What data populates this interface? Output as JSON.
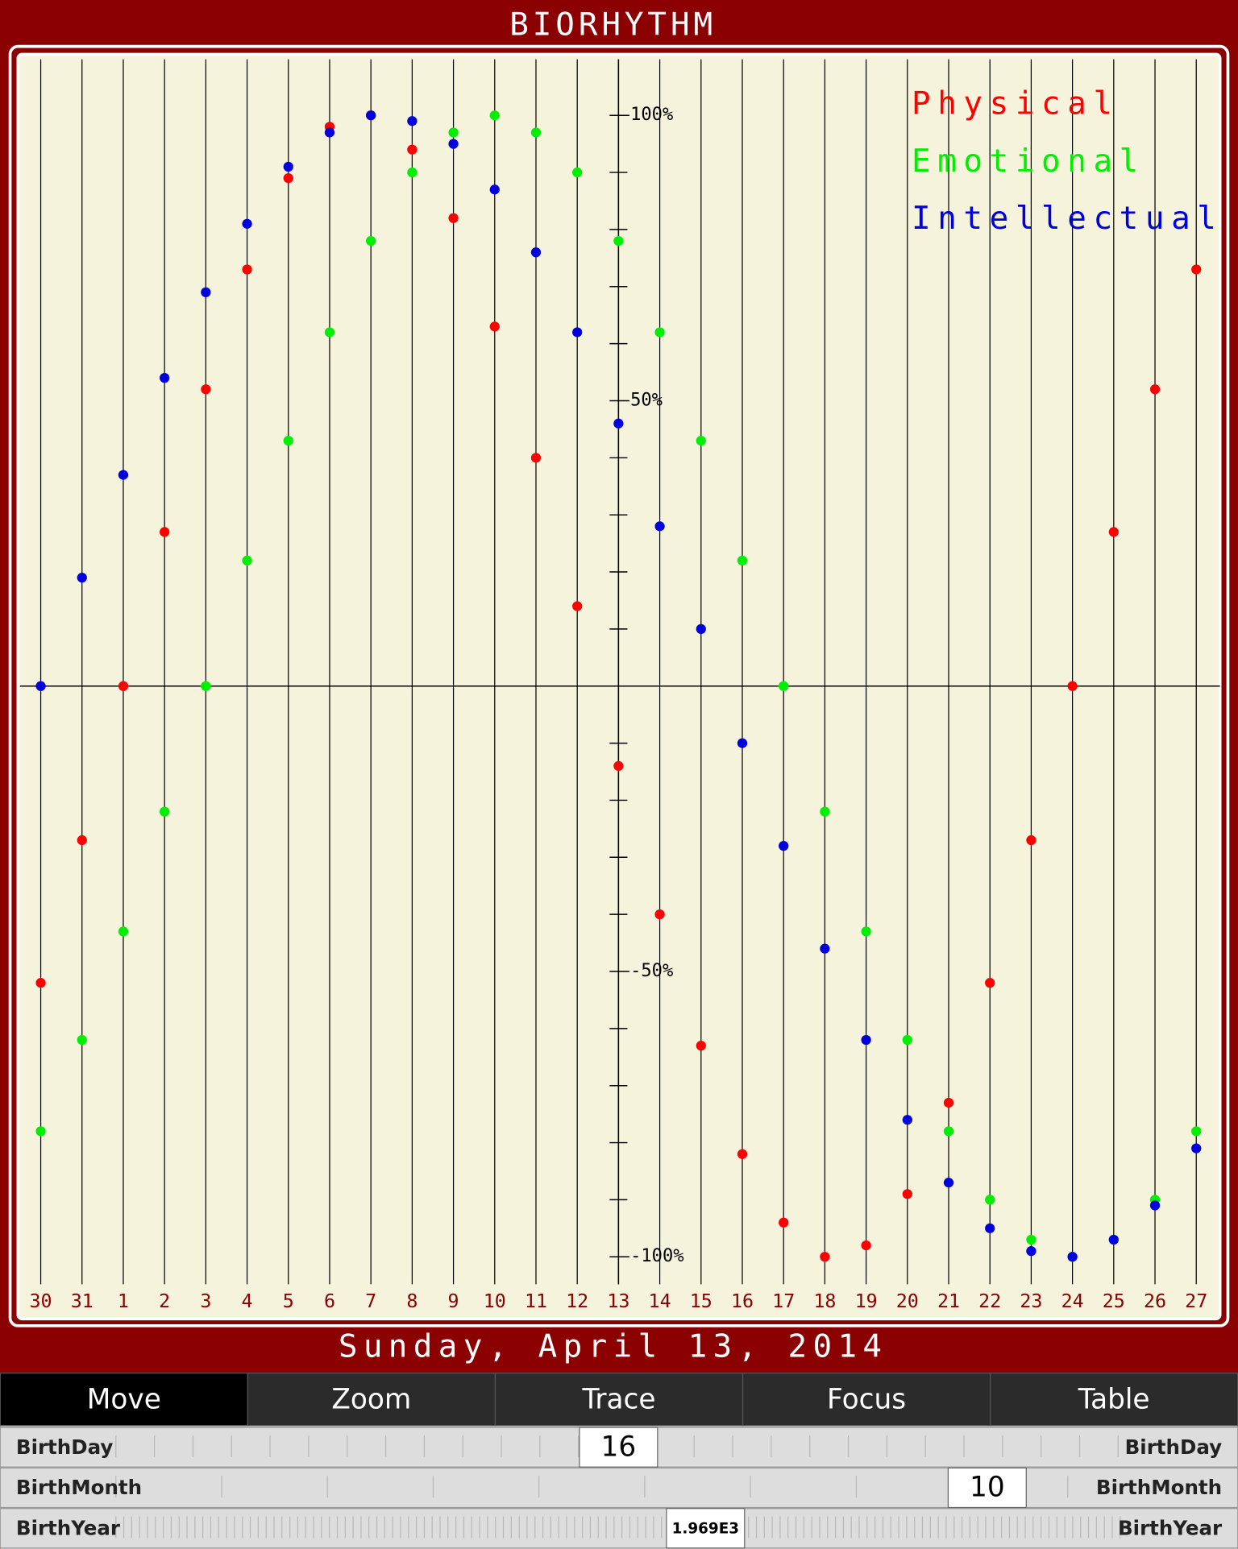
{
  "chart_data": {
    "type": "dot",
    "title": "BIORHYTHM",
    "subtitle": "Sunday, April 13, 2014",
    "categories": [
      "30",
      "31",
      "1",
      "2",
      "3",
      "4",
      "5",
      "6",
      "7",
      "8",
      "9",
      "10",
      "11",
      "12",
      "13",
      "14",
      "15",
      "16",
      "17",
      "18",
      "19",
      "20",
      "21",
      "22",
      "23",
      "24",
      "25",
      "26",
      "27"
    ],
    "series": [
      {
        "name": "Physical",
        "color": "#ff0000",
        "values": [
          -52,
          -27,
          0,
          27,
          52,
          73,
          89,
          98,
          100,
          94,
          82,
          63,
          40,
          14,
          -14,
          -40,
          -63,
          -82,
          -94,
          -100,
          -98,
          -89,
          -73,
          -52,
          -27,
          0,
          27,
          52,
          73
        ]
      },
      {
        "name": "Emotional",
        "color": "#00ee00",
        "values": [
          -78,
          -62,
          -43,
          -22,
          0,
          22,
          43,
          62,
          78,
          90,
          97,
          100,
          97,
          90,
          78,
          62,
          43,
          22,
          0,
          -22,
          -43,
          -62,
          -78,
          -90,
          -97,
          -100,
          -97,
          -90,
          -78
        ]
      },
      {
        "name": "Intellectual",
        "color": "#0000dd",
        "values": [
          0,
          19,
          37,
          54,
          69,
          81,
          91,
          97,
          100,
          99,
          95,
          87,
          76,
          62,
          46,
          28,
          10,
          -10,
          -28,
          -46,
          -62,
          -76,
          -87,
          -95,
          -99,
          -100,
          -97,
          -91,
          -81
        ]
      }
    ],
    "ylim": [
      -110,
      110
    ],
    "yticks": [
      {
        "value": 100,
        "label": "100%"
      },
      {
        "value": 50,
        "label": "50%"
      },
      {
        "value": -50,
        "label": "-50%"
      },
      {
        "value": -100,
        "label": "-100%"
      }
    ],
    "minor_yticks": [
      -90,
      -80,
      -70,
      -60,
      -40,
      -30,
      -20,
      -10,
      10,
      20,
      30,
      40,
      60,
      70,
      80,
      90
    ],
    "grid": true,
    "legend": "top-right"
  },
  "toolbar": {
    "buttons": [
      "Move",
      "Zoom",
      "Trace",
      "Focus",
      "Table"
    ],
    "selected": 0
  },
  "sliders": [
    {
      "label": "BirthDay",
      "value": "16"
    },
    {
      "label": "BirthMonth",
      "value": "10"
    },
    {
      "label": "BirthYear",
      "value": "1.969E3"
    }
  ]
}
